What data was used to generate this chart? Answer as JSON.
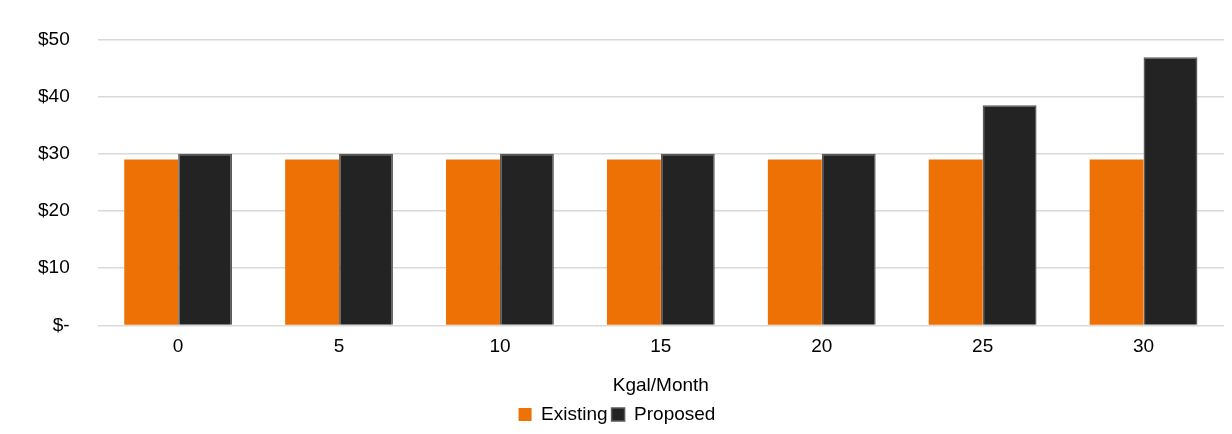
{
  "chart_data": {
    "type": "bar",
    "xlabel": "Kgal/Month",
    "categories": [
      "0",
      "5",
      "10",
      "15",
      "20",
      "25",
      "30"
    ],
    "series": [
      {
        "name": "Existing",
        "color": "#ed7104",
        "values": [
          29,
          29,
          29,
          29,
          29,
          29,
          29
        ]
      },
      {
        "name": "Proposed",
        "color": "#232323",
        "values": [
          30,
          30,
          30,
          30,
          30,
          38.5,
          46.9
        ]
      }
    ],
    "ylim": [
      0,
      50
    ],
    "yticks": [
      {
        "value": 0,
        "label": "$-"
      },
      {
        "value": 10,
        "label": "$10"
      },
      {
        "value": 20,
        "label": "$20"
      },
      {
        "value": 30,
        "label": "$30"
      },
      {
        "value": 40,
        "label": "$40"
      },
      {
        "value": 50,
        "label": "$50"
      }
    ],
    "grid": "y",
    "legend": "bottom"
  }
}
